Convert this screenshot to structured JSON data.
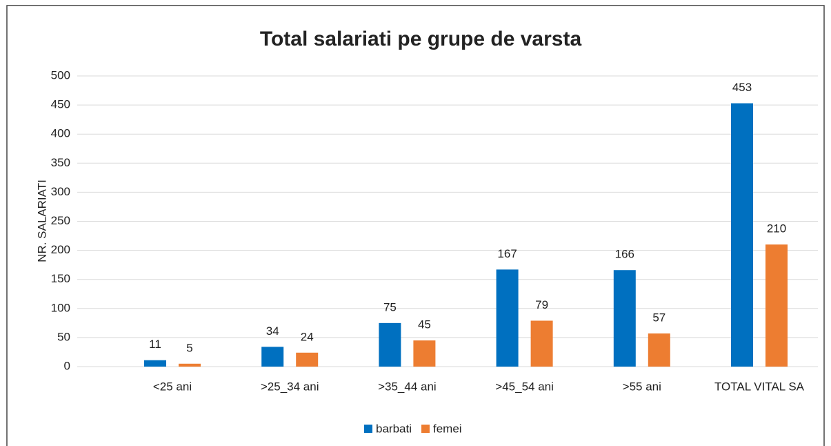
{
  "chart_data": {
    "type": "bar",
    "title": "Total salariati pe grupe de varsta",
    "y_label": "NR. SALARIATI",
    "categories": [
      "<25 ani",
      ">25_34 ani",
      ">35_44 ani",
      ">45_54 ani",
      ">55 ani",
      "TOTAL VITAL SA"
    ],
    "series": [
      {
        "name": "barbati",
        "color": "#0070c0",
        "values": [
          11,
          34,
          75,
          167,
          166,
          453
        ]
      },
      {
        "name": "femei",
        "color": "#ed7d31",
        "values": [
          5,
          24,
          45,
          79,
          57,
          210
        ]
      }
    ],
    "ylim": [
      0,
      500
    ],
    "yticks": [
      0,
      50,
      100,
      150,
      200,
      250,
      300,
      350,
      400,
      450,
      500
    ],
    "grid": true,
    "legend": "bottom"
  }
}
